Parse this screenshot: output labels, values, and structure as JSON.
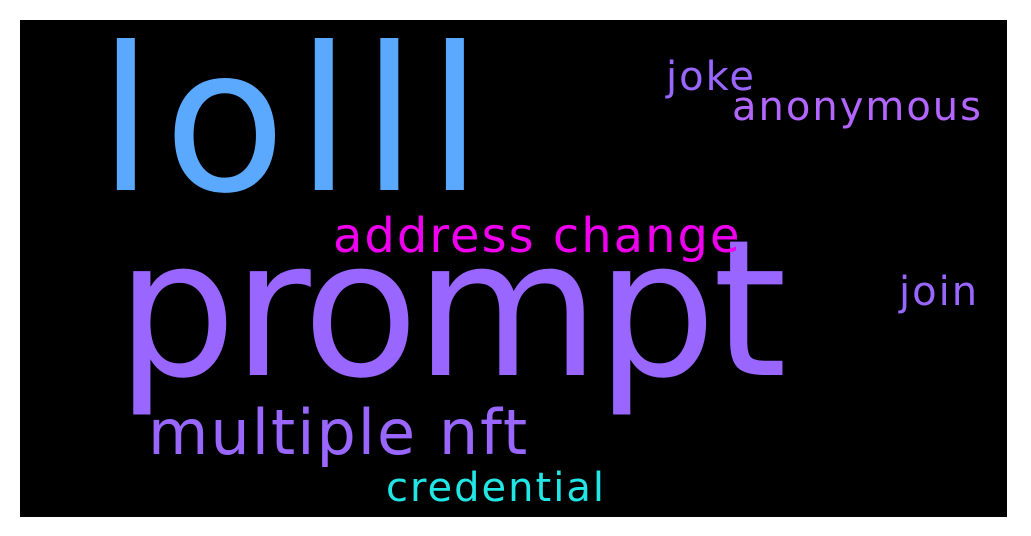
{
  "word_cloud": {
    "background_color": "#000000",
    "words": {
      "lolll": {
        "text": "lolll",
        "color": "#5aa9ff"
      },
      "prompt": {
        "text": "prompt",
        "color": "#9966ff"
      },
      "address": {
        "text": "address change",
        "color": "#ee00ee"
      },
      "multiple": {
        "text": "multiple nft",
        "color": "#9966ff"
      },
      "credential": {
        "text": "credential",
        "color": "#22e6e6"
      },
      "joke": {
        "text": "joke",
        "color": "#9966ff"
      },
      "anonymous": {
        "text": "anonymous",
        "color": "#b366ff"
      },
      "join": {
        "text": "join",
        "color": "#9966ff"
      }
    }
  }
}
